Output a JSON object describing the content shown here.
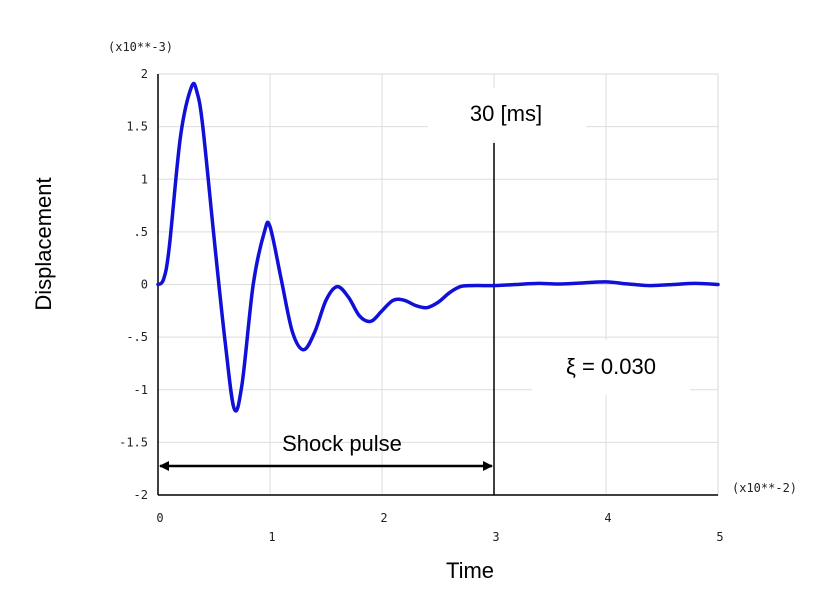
{
  "chart_data": {
    "type": "line",
    "xlabel": "Time",
    "ylabel": "Displacement",
    "x_multiplier_label": "(x10**-2)",
    "y_multiplier_label": "(x10**-3)",
    "xlim": [
      0,
      5
    ],
    "ylim": [
      -2,
      2
    ],
    "x_ticks": [
      "0",
      "1",
      "2",
      "3",
      "4",
      "5"
    ],
    "y_ticks": [
      "2",
      "1.5",
      "1",
      ".5",
      "0",
      "-.5",
      "-1",
      "-1.5",
      "-2"
    ],
    "grid": true,
    "series_color": "#1010d8",
    "series": [
      {
        "x": [
          0,
          0.05,
          0.1,
          0.2,
          0.3,
          0.35,
          0.4,
          0.5,
          0.6,
          0.68,
          0.75,
          0.85,
          0.95,
          1.0,
          1.1,
          1.2,
          1.3,
          1.4,
          1.5,
          1.6,
          1.7,
          1.8,
          1.9,
          2.0,
          2.1,
          2.2,
          2.3,
          2.4,
          2.5,
          2.6,
          2.7,
          2.8,
          2.9,
          3.0,
          3.2,
          3.4,
          3.6,
          3.8,
          4.0,
          4.2,
          4.4,
          4.6,
          4.8,
          5.0
        ],
        "y": [
          0,
          0.05,
          0.35,
          1.4,
          1.88,
          1.82,
          1.5,
          0.45,
          -0.55,
          -1.18,
          -0.95,
          0.0,
          0.5,
          0.55,
          0.05,
          -0.45,
          -0.62,
          -0.45,
          -0.15,
          -0.02,
          -0.12,
          -0.3,
          -0.35,
          -0.25,
          -0.15,
          -0.15,
          -0.2,
          -0.22,
          -0.17,
          -0.08,
          -0.02,
          -0.01,
          -0.01,
          -0.01,
          0.0,
          0.01,
          0.005,
          0.015,
          0.025,
          0.005,
          -0.01,
          0.0,
          0.01,
          0.0
        ]
      }
    ],
    "annotations": {
      "time_marker_x": 3,
      "time_marker_label": "30 [ms]",
      "damping_label": "ξ = 0.030",
      "pulse_label": "Shock pulse",
      "pulse_range": [
        0,
        3
      ]
    }
  }
}
